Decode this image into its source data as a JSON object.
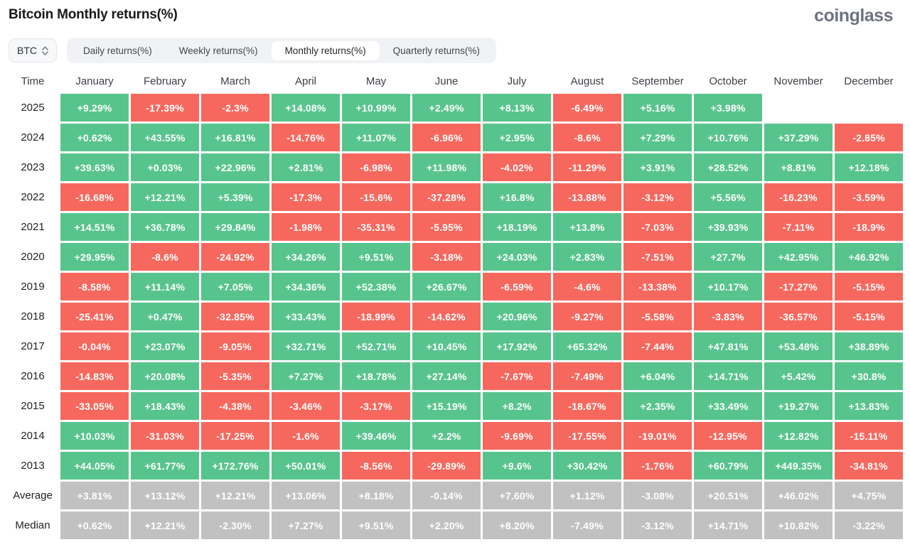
{
  "header": {
    "title": "Bitcoin Monthly returns(%)",
    "logo": "coinglass"
  },
  "controls": {
    "symbol_select": {
      "value": "BTC",
      "icon": "sort-updown-icon"
    },
    "tabs": [
      {
        "label": "Daily returns(%)",
        "active": false
      },
      {
        "label": "Weekly returns(%)",
        "active": false
      },
      {
        "label": "Monthly returns(%)",
        "active": true
      },
      {
        "label": "Quarterly returns(%)",
        "active": false
      }
    ]
  },
  "colors": {
    "positive": "#58c48d",
    "negative": "#f6685e",
    "summary": "#c1c1c1",
    "tab_bar_bg": "#f1f2f5",
    "active_tab_bg": "#ffffff"
  },
  "table": {
    "time_header": "Time",
    "months": [
      "January",
      "February",
      "March",
      "April",
      "May",
      "June",
      "July",
      "August",
      "September",
      "October",
      "November",
      "December"
    ],
    "rows": [
      {
        "label": "2025",
        "type": "year",
        "values": [
          "+9.29%",
          "-17.39%",
          "-2.3%",
          "+14.08%",
          "+10.99%",
          "+2.49%",
          "+8.13%",
          "-6.49%",
          "+5.16%",
          "+3.98%",
          "",
          ""
        ]
      },
      {
        "label": "2024",
        "type": "year",
        "values": [
          "+0.62%",
          "+43.55%",
          "+16.81%",
          "-14.76%",
          "+11.07%",
          "-6.96%",
          "+2.95%",
          "-8.6%",
          "+7.29%",
          "+10.76%",
          "+37.29%",
          "-2.85%"
        ]
      },
      {
        "label": "2023",
        "type": "year",
        "values": [
          "+39.63%",
          "+0.03%",
          "+22.96%",
          "+2.81%",
          "-6.98%",
          "+11.98%",
          "-4.02%",
          "-11.29%",
          "+3.91%",
          "+28.52%",
          "+8.81%",
          "+12.18%"
        ]
      },
      {
        "label": "2022",
        "type": "year",
        "values": [
          "-16.68%",
          "+12.21%",
          "+5.39%",
          "-17.3%",
          "-15.6%",
          "-37.28%",
          "+16.8%",
          "-13.88%",
          "-3.12%",
          "+5.56%",
          "-16.23%",
          "-3.59%"
        ]
      },
      {
        "label": "2021",
        "type": "year",
        "values": [
          "+14.51%",
          "+36.78%",
          "+29.84%",
          "-1.98%",
          "-35.31%",
          "-5.95%",
          "+18.19%",
          "+13.8%",
          "-7.03%",
          "+39.93%",
          "-7.11%",
          "-18.9%"
        ]
      },
      {
        "label": "2020",
        "type": "year",
        "values": [
          "+29.95%",
          "-8.6%",
          "-24.92%",
          "+34.26%",
          "+9.51%",
          "-3.18%",
          "+24.03%",
          "+2.83%",
          "-7.51%",
          "+27.7%",
          "+42.95%",
          "+46.92%"
        ]
      },
      {
        "label": "2019",
        "type": "year",
        "values": [
          "-8.58%",
          "+11.14%",
          "+7.05%",
          "+34.36%",
          "+52.38%",
          "+26.67%",
          "-6.59%",
          "-4.6%",
          "-13.38%",
          "+10.17%",
          "-17.27%",
          "-5.15%"
        ]
      },
      {
        "label": "2018",
        "type": "year",
        "values": [
          "-25.41%",
          "+0.47%",
          "-32.85%",
          "+33.43%",
          "-18.99%",
          "-14.62%",
          "+20.96%",
          "-9.27%",
          "-5.58%",
          "-3.83%",
          "-36.57%",
          "-5.15%"
        ]
      },
      {
        "label": "2017",
        "type": "year",
        "values": [
          "-0.04%",
          "+23.07%",
          "-9.05%",
          "+32.71%",
          "+52.71%",
          "+10.45%",
          "+17.92%",
          "+65.32%",
          "-7.44%",
          "+47.81%",
          "+53.48%",
          "+38.89%"
        ]
      },
      {
        "label": "2016",
        "type": "year",
        "values": [
          "-14.83%",
          "+20.08%",
          "-5.35%",
          "+7.27%",
          "+18.78%",
          "+27.14%",
          "-7.67%",
          "-7.49%",
          "+6.04%",
          "+14.71%",
          "+5.42%",
          "+30.8%"
        ]
      },
      {
        "label": "2015",
        "type": "year",
        "values": [
          "-33.05%",
          "+18.43%",
          "-4.38%",
          "-3.46%",
          "-3.17%",
          "+15.19%",
          "+8.2%",
          "-18.67%",
          "+2.35%",
          "+33.49%",
          "+19.27%",
          "+13.83%"
        ]
      },
      {
        "label": "2014",
        "type": "year",
        "values": [
          "+10.03%",
          "-31.03%",
          "-17.25%",
          "-1.6%",
          "+39.46%",
          "+2.2%",
          "-9.69%",
          "-17.55%",
          "-19.01%",
          "-12.95%",
          "+12.82%",
          "-15.11%"
        ]
      },
      {
        "label": "2013",
        "type": "year",
        "values": [
          "+44.05%",
          "+61.77%",
          "+172.76%",
          "+50.01%",
          "-8.56%",
          "-29.89%",
          "+9.6%",
          "+30.42%",
          "-1.76%",
          "+60.79%",
          "+449.35%",
          "-34.81%"
        ]
      },
      {
        "label": "Average",
        "type": "summary",
        "values": [
          "+3.81%",
          "+13.12%",
          "+12.21%",
          "+13.06%",
          "+8.18%",
          "-0.14%",
          "+7.60%",
          "+1.12%",
          "-3.08%",
          "+20.51%",
          "+46.02%",
          "+4.75%"
        ]
      },
      {
        "label": "Median",
        "type": "summary",
        "values": [
          "+0.62%",
          "+12.21%",
          "-2.30%",
          "+7.27%",
          "+9.51%",
          "+2.20%",
          "+8.20%",
          "-7.49%",
          "-3.12%",
          "+14.71%",
          "+10.82%",
          "-3.22%"
        ]
      }
    ]
  }
}
